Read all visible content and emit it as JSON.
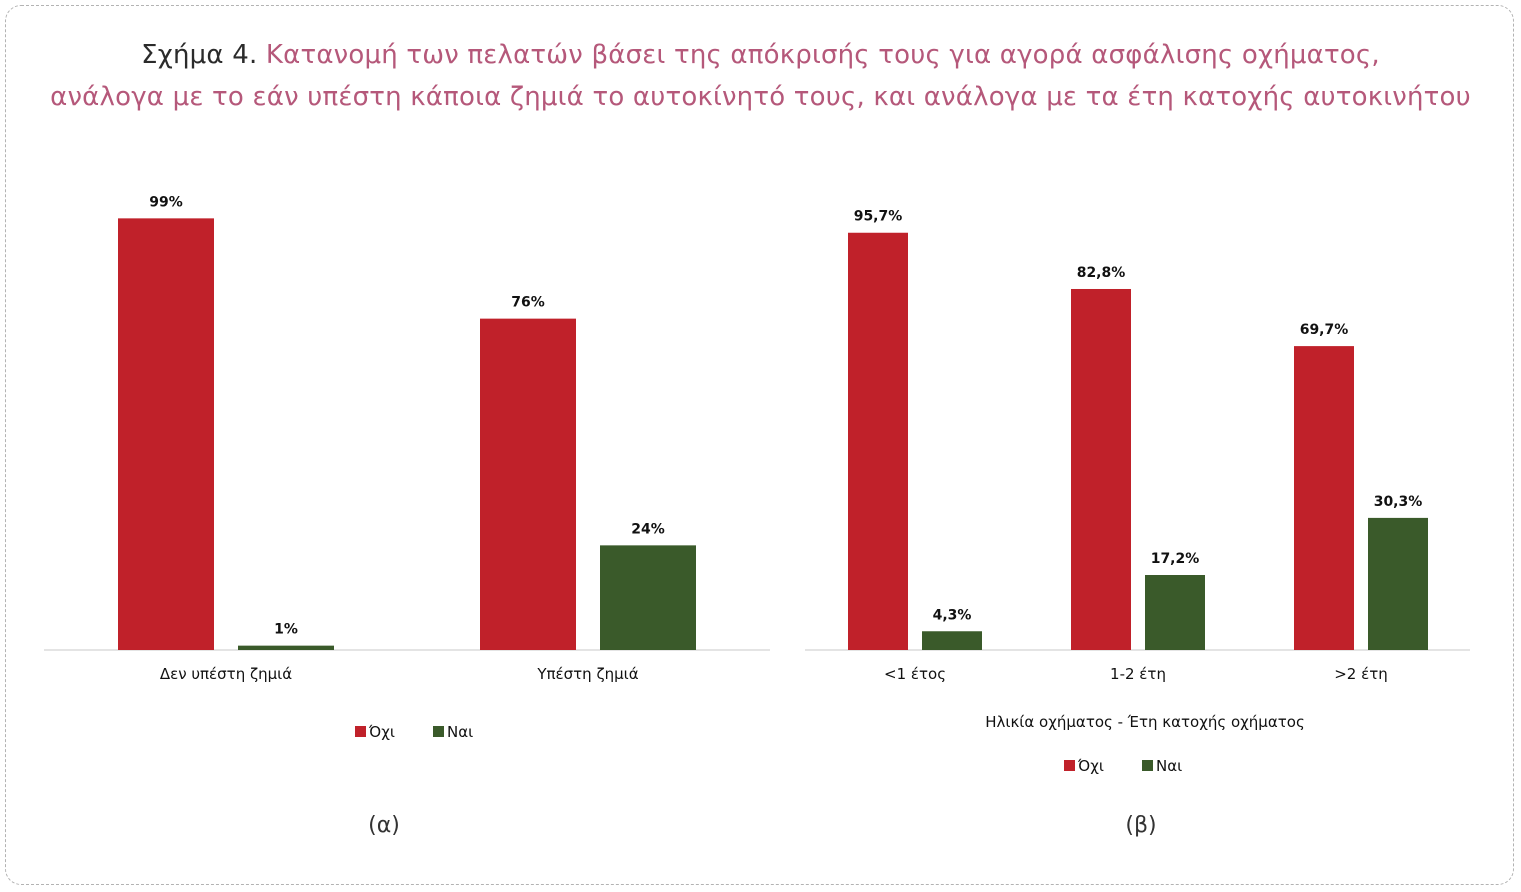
{
  "title": {
    "prefix": "Σχήμα 4.",
    "line1": "Κατανομή των πελατών βάσει της απόκρισής τους για αγορά ασφάλισης οχήματος,",
    "line2": "ανάλογα με το εάν υπέστη κάποια ζημιά το αυτοκίνητό τους, και ανάλογα με τα έτη κατοχής αυτοκινήτου"
  },
  "colors": {
    "no": "#c0212a",
    "yes": "#3a5a2a",
    "title_accent": "#b5587a"
  },
  "chart_data": [
    {
      "type": "bar",
      "panel_label": "(α)",
      "categories": [
        "Δεν υπέστη ζημιά",
        "Υπέστη ζημιά"
      ],
      "series": [
        {
          "name": "Όχι",
          "values": [
            99,
            76
          ],
          "labels": [
            "99%",
            "76%"
          ]
        },
        {
          "name": "Ναι",
          "values": [
            1,
            24
          ],
          "labels": [
            "1%",
            "24%"
          ]
        }
      ],
      "xlabel": "",
      "ylim": [
        0,
        100
      ],
      "legend": "bottom"
    },
    {
      "type": "bar",
      "panel_label": "(β)",
      "categories": [
        "<1 έτος",
        "1-2 έτη",
        ">2 έτη"
      ],
      "series": [
        {
          "name": "Όχι",
          "values": [
            95.7,
            82.8,
            69.7
          ],
          "labels": [
            "95,7%",
            "82,8%",
            "69,7%"
          ]
        },
        {
          "name": "Ναι",
          "values": [
            4.3,
            17.2,
            30.3
          ],
          "labels": [
            "4,3%",
            "17,2%",
            "30,3%"
          ]
        }
      ],
      "xlabel": "Ηλικία οχήματος - Έτη κατοχής οχήματος",
      "ylim": [
        0,
        100
      ],
      "legend": "bottom"
    }
  ]
}
